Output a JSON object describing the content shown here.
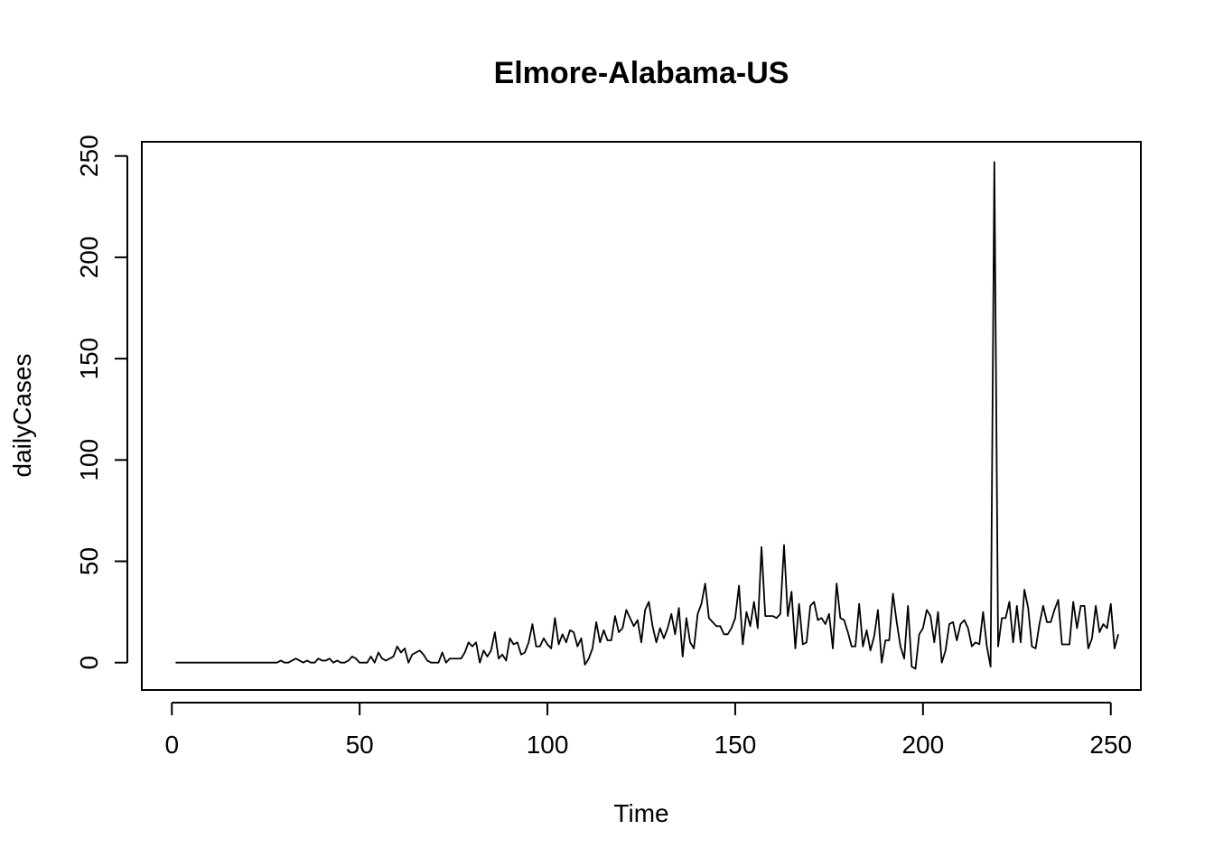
{
  "chart_data": {
    "type": "line",
    "title": "Elmore-Alabama-US",
    "xlabel": "Time",
    "ylabel": "dailyCases",
    "xlim": [
      -8,
      258
    ],
    "ylim": [
      -13.5,
      257
    ],
    "x_ticks": [
      0,
      50,
      100,
      150,
      200,
      250
    ],
    "y_ticks": [
      0,
      50,
      100,
      150,
      200,
      250
    ],
    "x_tick_labels": [
      "0",
      "50",
      "100",
      "150",
      "200",
      "250"
    ],
    "y_tick_labels": [
      "0",
      "50",
      "100",
      "150",
      "200",
      "250"
    ],
    "grid": false,
    "legend": "none",
    "series": [
      {
        "x_start": 1,
        "values": [
          0,
          0,
          0,
          0,
          0,
          0,
          0,
          0,
          0,
          0,
          0,
          0,
          0,
          0,
          0,
          0,
          0,
          0,
          0,
          0,
          0,
          0,
          0,
          0,
          0,
          0,
          0,
          0,
          1,
          0,
          0,
          1,
          2,
          1,
          0,
          1,
          0,
          0,
          2,
          1,
          1,
          2,
          0,
          1,
          0,
          0,
          1,
          3,
          2,
          0,
          0,
          0,
          3,
          0,
          5,
          2,
          1,
          2,
          3,
          8,
          5,
          7,
          0,
          4,
          5,
          6,
          4,
          1,
          0,
          0,
          0,
          5,
          0,
          2,
          2,
          2,
          2,
          5,
          10,
          8,
          10,
          0,
          6,
          3,
          6,
          15,
          2,
          4,
          1,
          12,
          9,
          10,
          4,
          5,
          10,
          19,
          8,
          8,
          12,
          9,
          7,
          22,
          9,
          14,
          10,
          16,
          15,
          8,
          12,
          -1,
          2,
          7,
          20,
          10,
          16,
          11,
          11,
          23,
          15,
          17,
          26,
          22,
          18,
          21,
          10,
          26,
          30,
          18,
          10,
          17,
          12,
          17,
          24,
          14,
          27,
          3,
          22,
          10,
          7,
          24,
          29,
          39,
          22,
          20,
          18,
          18,
          14,
          14,
          17,
          22,
          38,
          9,
          25,
          18,
          30,
          17,
          57,
          23,
          23,
          23,
          22,
          24,
          58,
          23,
          35,
          7,
          29,
          9,
          10,
          28,
          30,
          21,
          22,
          19,
          24,
          7,
          39,
          22,
          21,
          15,
          8,
          8,
          29,
          8,
          16,
          6,
          13,
          26,
          0,
          11,
          11,
          34,
          20,
          8,
          2,
          28,
          -2,
          -3,
          14,
          17,
          26,
          23,
          10,
          25,
          0,
          6,
          19,
          20,
          11,
          19,
          21,
          17,
          8,
          10,
          9,
          25,
          8,
          -2,
          247,
          8,
          22,
          22,
          30,
          10,
          28,
          10,
          36,
          27,
          8,
          7,
          19,
          28,
          20,
          20,
          26,
          31,
          9,
          9,
          9,
          30,
          17,
          28,
          28,
          7,
          12,
          28,
          15,
          19,
          17,
          29,
          7,
          14
        ]
      }
    ]
  }
}
